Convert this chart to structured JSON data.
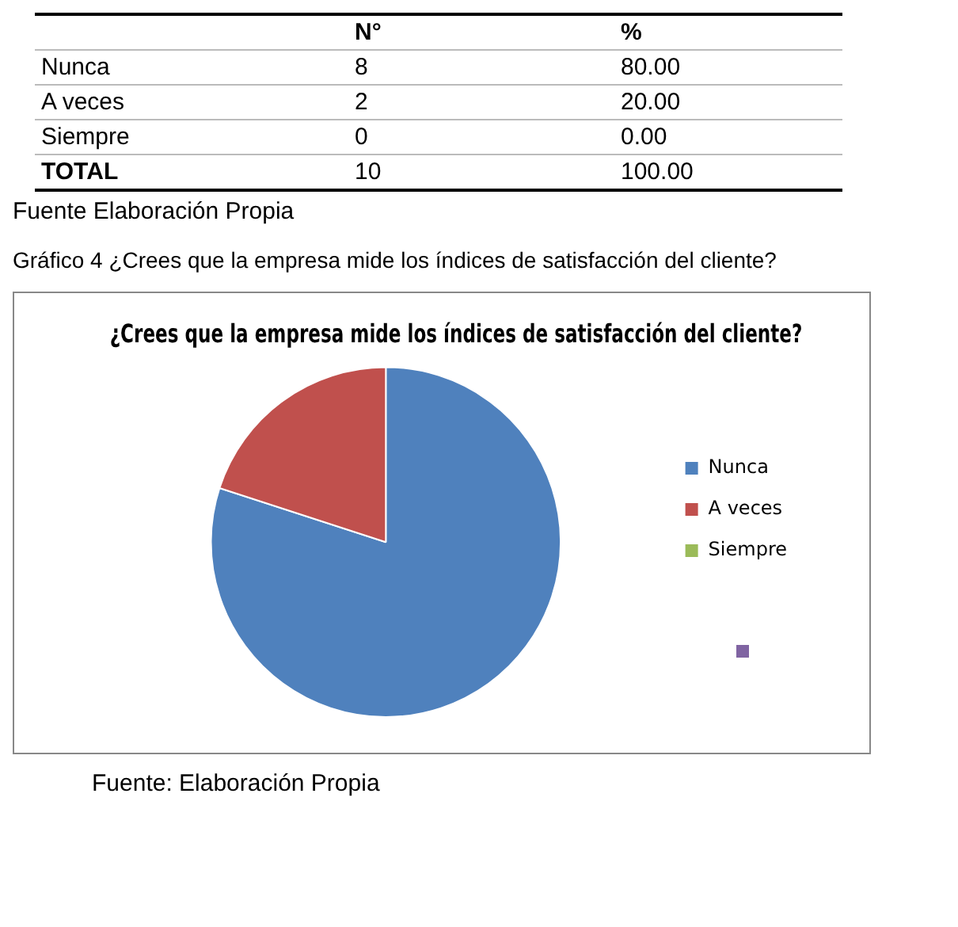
{
  "chart_data": [
    {
      "type": "other",
      "categories": [
        "Nunca",
        "A veces",
        "Siempre"
      ],
      "data_labels": true,
      "series": [
        {
          "name": "N°",
          "values": [
            8,
            2,
            0
          ]
        },
        {
          "name": "%",
          "values": [
            80,
            20,
            0
          ],
          "value_labels": [
            "80.00",
            "20.00",
            "0.00"
          ]
        }
      ],
      "totals": [
        "10",
        "100.00"
      ],
      "annotations": [
        "TOTAL",
        "Fuente Elaboración Propia"
      ]
    },
    {
      "type": "pie",
      "title": "¿Crees que la empresa mide los índices de satisfacción del cliente?",
      "categories": [
        "Nunca",
        "A veces",
        "Siempre"
      ],
      "values": [
        80,
        20,
        0
      ],
      "colors": [
        "#4f81bd",
        "#c0504d",
        "#9bbb59"
      ],
      "legend": "right",
      "annotations": [
        "Gráfico 4 ¿Crees que la empresa mide los índices de satisfacción del cliente?",
        "Fuente: Elaboración Propia"
      ]
    }
  ]
}
